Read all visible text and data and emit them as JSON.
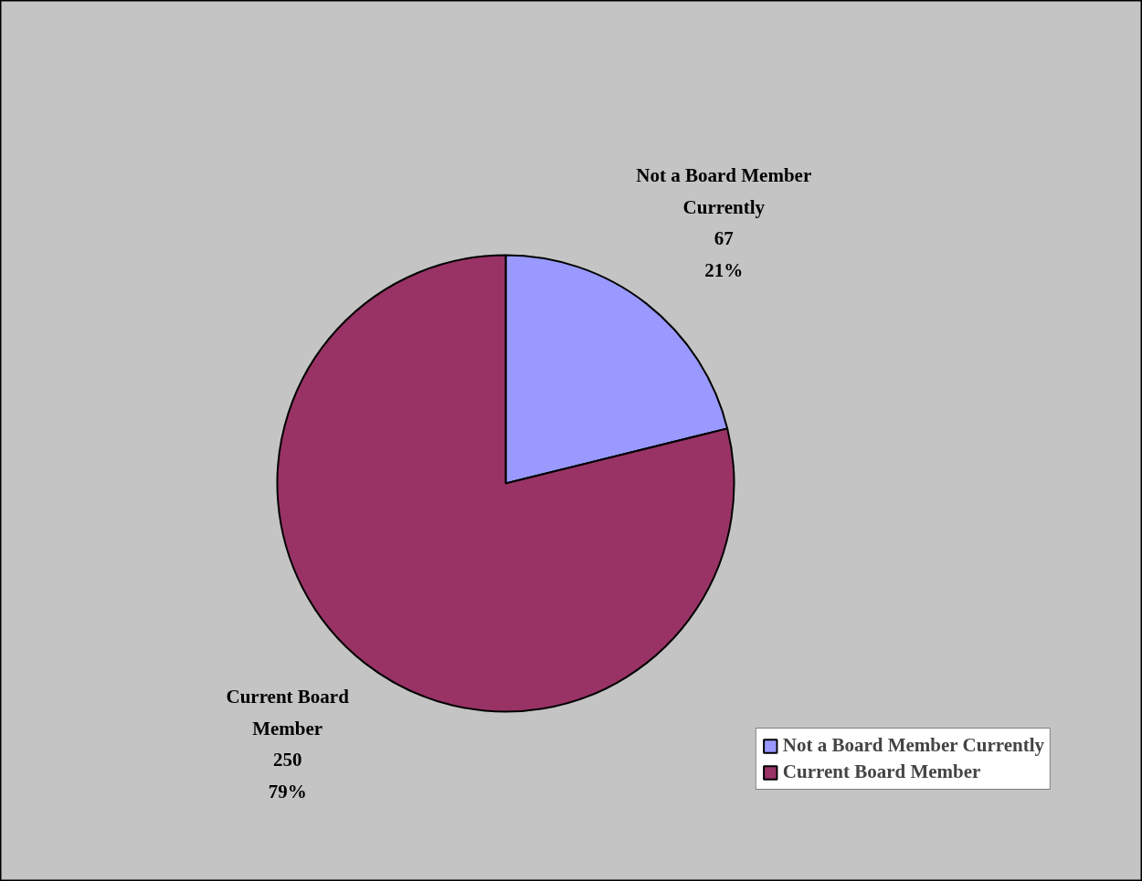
{
  "chart_data": {
    "type": "pie",
    "categories": [
      "Not a Board Member Currently",
      "Current Board Member"
    ],
    "values": [
      67,
      250
    ],
    "colors": [
      "#9999ff",
      "#993366"
    ],
    "value_labels": [
      "67\n21%",
      "250\n79%"
    ],
    "legend": "bottom right"
  }
}
